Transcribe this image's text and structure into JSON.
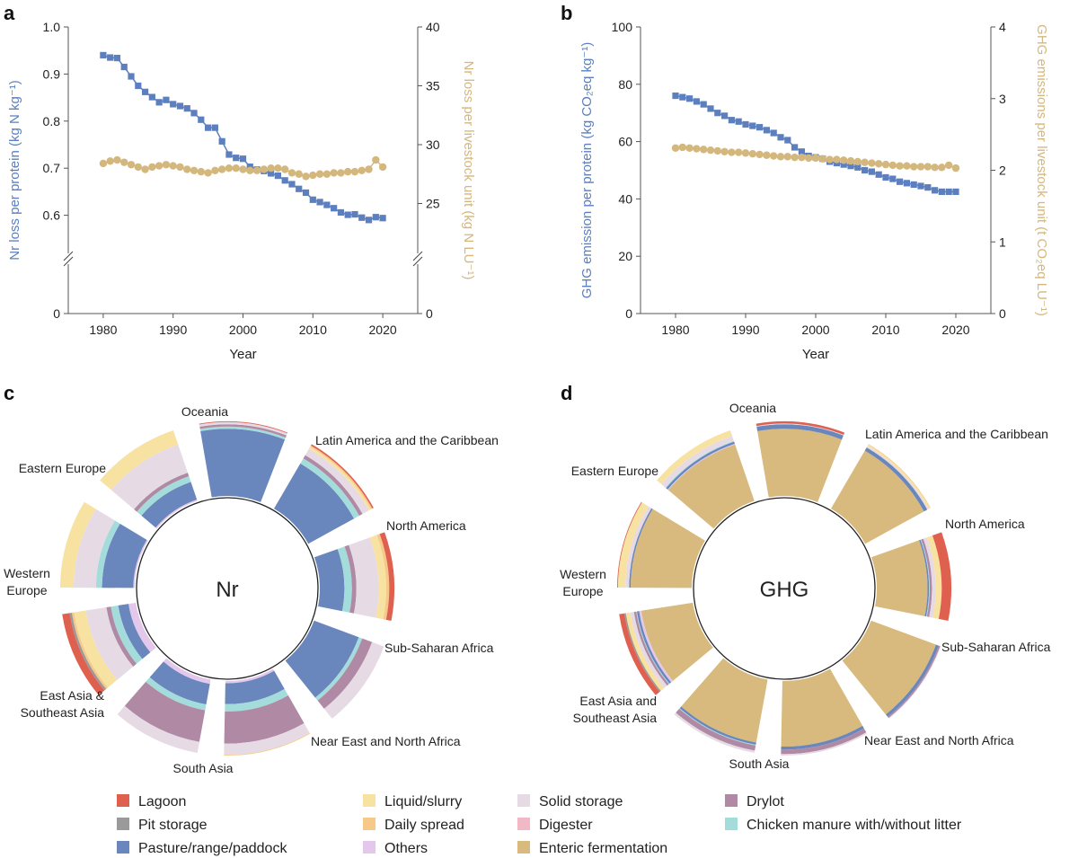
{
  "panels": {
    "a": "a",
    "b": "b",
    "c": "c",
    "d": "d"
  },
  "colors": {
    "blue": "#5b7fbf",
    "tan": "#d4b77d",
    "lagoon": "#e06050",
    "pit_storage": "#9a9a9a",
    "pasture": "#6a87bd",
    "liquid_slurry": "#f7e2a2",
    "daily_spread": "#f6c98a",
    "others": "#e3c8ec",
    "solid_storage": "#e6dbe5",
    "digester": "#f2b8c6",
    "enteric": "#d8b97e",
    "drylot": "#b08aa4",
    "chicken": "#a4dcdc"
  },
  "chart_data": [
    {
      "id": "a",
      "type": "line",
      "xlabel": "Year",
      "ylabel_left": "Nr loss per protein (kg N kg⁻¹)",
      "ylabel_right": "Nr loss per livestock unit (kg N LU⁻¹)",
      "xlim": [
        1975,
        2025
      ],
      "xticks": [
        1980,
        1990,
        2000,
        2010,
        2020
      ],
      "ylim_left": [
        0.5,
        1.0
      ],
      "yticks_left": [
        "0",
        "0.6",
        "0.7",
        "0.8",
        "0.9",
        "1.0"
      ],
      "ylim_right": [
        20,
        40
      ],
      "yticks_right": [
        "0",
        "25",
        "30",
        "35",
        "40"
      ],
      "axis_break": true,
      "x": [
        1980,
        1981,
        1982,
        1983,
        1984,
        1985,
        1986,
        1987,
        1988,
        1989,
        1990,
        1991,
        1992,
        1993,
        1994,
        1995,
        1996,
        1997,
        1998,
        1999,
        2000,
        2001,
        2002,
        2003,
        2004,
        2005,
        2006,
        2007,
        2008,
        2009,
        2010,
        2011,
        2012,
        2013,
        2014,
        2015,
        2016,
        2017,
        2018,
        2019,
        2020
      ],
      "series": [
        {
          "axis": "left",
          "marker": "square",
          "values": [
            0.94,
            0.935,
            0.934,
            0.915,
            0.895,
            0.875,
            0.862,
            0.851,
            0.84,
            0.845,
            0.836,
            0.832,
            0.827,
            0.817,
            0.803,
            0.786,
            0.786,
            0.757,
            0.729,
            0.722,
            0.72,
            0.703,
            0.697,
            0.694,
            0.689,
            0.684,
            0.674,
            0.666,
            0.656,
            0.648,
            0.633,
            0.628,
            0.622,
            0.615,
            0.606,
            0.601,
            0.602,
            0.595,
            0.59,
            0.596,
            0.594
          ]
        },
        {
          "axis": "right",
          "marker": "circle",
          "values": [
            28.4,
            28.6,
            28.7,
            28.5,
            28.3,
            28.1,
            27.9,
            28.1,
            28.2,
            28.3,
            28.2,
            28.1,
            27.9,
            27.8,
            27.7,
            27.6,
            27.8,
            27.9,
            28.0,
            28.0,
            27.9,
            27.8,
            27.8,
            27.9,
            28.0,
            28.0,
            27.9,
            27.6,
            27.5,
            27.3,
            27.4,
            27.5,
            27.5,
            27.6,
            27.6,
            27.7,
            27.7,
            27.8,
            27.9,
            28.7,
            28.1
          ]
        }
      ]
    },
    {
      "id": "b",
      "type": "line",
      "xlabel": "Year",
      "ylabel_left": "GHG emission per protein (kg CO₂eq kg⁻¹)",
      "ylabel_right": "GHG emissions per livestock unit (t CO₂eq LU⁻¹)",
      "xlim": [
        1975,
        2025
      ],
      "xticks": [
        1980,
        1990,
        2000,
        2010,
        2020
      ],
      "ylim_left": [
        0,
        100
      ],
      "yticks_left": [
        "0",
        "20",
        "40",
        "60",
        "80",
        "100"
      ],
      "ylim_right": [
        0,
        4
      ],
      "yticks_right": [
        "0",
        "1",
        "2",
        "3",
        "4"
      ],
      "x": [
        1980,
        1981,
        1982,
        1983,
        1984,
        1985,
        1986,
        1987,
        1988,
        1989,
        1990,
        1991,
        1992,
        1993,
        1994,
        1995,
        1996,
        1997,
        1998,
        1999,
        2000,
        2001,
        2002,
        2003,
        2004,
        2005,
        2006,
        2007,
        2008,
        2009,
        2010,
        2011,
        2012,
        2013,
        2014,
        2015,
        2016,
        2017,
        2018,
        2019,
        2020
      ],
      "series": [
        {
          "axis": "left",
          "marker": "square",
          "values": [
            76,
            75.5,
            75,
            74,
            73,
            71.5,
            70,
            69,
            67.5,
            67,
            66,
            65.5,
            65,
            64,
            63,
            61.5,
            60.5,
            58,
            56.5,
            55,
            54.5,
            54,
            53,
            52.5,
            52,
            51.5,
            51,
            50,
            49.5,
            48.5,
            47.5,
            47,
            46,
            45.5,
            45,
            44.5,
            44,
            43,
            42.5,
            42.5,
            42.5
          ]
        },
        {
          "axis": "right",
          "marker": "circle",
          "values": [
            2.31,
            2.32,
            2.31,
            2.3,
            2.29,
            2.28,
            2.27,
            2.26,
            2.25,
            2.25,
            2.24,
            2.23,
            2.22,
            2.21,
            2.2,
            2.19,
            2.19,
            2.18,
            2.18,
            2.17,
            2.17,
            2.16,
            2.15,
            2.15,
            2.14,
            2.13,
            2.12,
            2.11,
            2.1,
            2.09,
            2.08,
            2.07,
            2.06,
            2.06,
            2.05,
            2.05,
            2.05,
            2.04,
            2.04,
            2.07,
            2.03
          ]
        }
      ]
    },
    {
      "id": "c",
      "type": "radial-stacked-bar",
      "center_label": "Nr",
      "regions": [
        "Oceania",
        "Latin America and the Caribbean",
        "North America",
        "Sub-Saharan Africa",
        "Near East and North Africa",
        "South Asia",
        "East Asia & Southeast Asia",
        "Western Europe",
        "Eastern Europe"
      ],
      "region_label_lines": [
        [
          "Oceania"
        ],
        [
          "Latin America and the Caribbean"
        ],
        [
          "North America"
        ],
        [
          "Sub-Saharan Africa"
        ],
        [
          "Near East and North Africa"
        ],
        [
          "South Asia"
        ],
        [
          "East Asia &",
          "Southeast Asia"
        ],
        [
          "Western",
          "Europe"
        ],
        [
          "Eastern Europe"
        ]
      ],
      "stack_order": [
        "others",
        "pasture",
        "chicken",
        "drylot",
        "solid_storage",
        "liquid_slurry",
        "daily_spread",
        "digester",
        "pit_storage",
        "lagoon"
      ],
      "shares": [
        {
          "pasture": 0.9,
          "chicken": 0.03,
          "drylot": 0.03,
          "solid_storage": 0.03,
          "lagoon": 0.01
        },
        {
          "pasture": 0.7,
          "chicken": 0.08,
          "drylot": 0.05,
          "solid_storage": 0.1,
          "liquid_slurry": 0.03,
          "daily_spread": 0.02,
          "lagoon": 0.02
        },
        {
          "pasture": 0.33,
          "chicken": 0.1,
          "drylot": 0.06,
          "solid_storage": 0.3,
          "liquid_slurry": 0.1,
          "daily_spread": 0.04,
          "lagoon": 0.07
        },
        {
          "pasture": 0.64,
          "chicken": 0.05,
          "drylot": 0.14,
          "solid_storage": 0.17
        },
        {
          "others": 0.03,
          "pasture": 0.28,
          "chicken": 0.1,
          "drylot": 0.43,
          "solid_storage": 0.15,
          "daily_spread": 0.01
        },
        {
          "others": 0.06,
          "pasture": 0.28,
          "chicken": 0.08,
          "drylot": 0.43,
          "solid_storage": 0.15
        },
        {
          "others": 0.1,
          "pasture": 0.14,
          "chicken": 0.1,
          "drylot": 0.06,
          "solid_storage": 0.28,
          "liquid_slurry": 0.16,
          "daily_spread": 0.03,
          "pit_storage": 0.03,
          "lagoon": 0.1
        },
        {
          "others": 0.02,
          "pasture": 0.42,
          "chicken": 0.08,
          "solid_storage": 0.3,
          "liquid_slurry": 0.18
        },
        {
          "others": 0.02,
          "pasture": 0.25,
          "chicken": 0.08,
          "drylot": 0.05,
          "solid_storage": 0.4,
          "liquid_slurry": 0.2
        }
      ]
    },
    {
      "id": "d",
      "type": "radial-stacked-bar",
      "center_label": "GHG",
      "regions": [
        "Oceania",
        "Latin America and the Caribbean",
        "North America",
        "Sub-Saharan Africa",
        "Near East and North Africa",
        "South Asia",
        "East Asia and Southeast Asia",
        "Western Europe",
        "Eastern Europe"
      ],
      "region_label_lines": [
        [
          "Oceania"
        ],
        [
          "Latin America and the Caribbean"
        ],
        [
          "North America"
        ],
        [
          "Sub-Saharan Africa"
        ],
        [
          "Near East and North Africa"
        ],
        [
          "South Asia"
        ],
        [
          "East Asia and",
          "Southeast Asia"
        ],
        [
          "Western",
          "Europe"
        ],
        [
          "Eastern Europe"
        ]
      ],
      "stack_order": [
        "enteric",
        "others",
        "pasture",
        "chicken",
        "drylot",
        "solid_storage",
        "liquid_slurry",
        "daily_spread",
        "digester",
        "pit_storage",
        "lagoon"
      ],
      "shares": [
        {
          "enteric": 0.9,
          "pasture": 0.06,
          "solid_storage": 0.01,
          "lagoon": 0.03
        },
        {
          "enteric": 0.9,
          "pasture": 0.05,
          "solid_storage": 0.02,
          "liquid_slurry": 0.02,
          "daily_spread": 0.01
        },
        {
          "enteric": 0.68,
          "pasture": 0.02,
          "chicken": 0.01,
          "drylot": 0.03,
          "solid_storage": 0.05,
          "liquid_slurry": 0.08,
          "lagoon": 0.13
        },
        {
          "enteric": 0.93,
          "pasture": 0.04,
          "drylot": 0.02,
          "solid_storage": 0.01
        },
        {
          "enteric": 0.88,
          "pasture": 0.04,
          "drylot": 0.06,
          "solid_storage": 0.02
        },
        {
          "enteric": 0.86,
          "pasture": 0.03,
          "chicken": 0.01,
          "drylot": 0.07,
          "solid_storage": 0.03
        },
        {
          "enteric": 0.7,
          "others": 0.03,
          "pasture": 0.03,
          "chicken": 0.01,
          "drylot": 0.03,
          "solid_storage": 0.05,
          "liquid_slurry": 0.06,
          "pit_storage": 0.02,
          "lagoon": 0.07
        },
        {
          "enteric": 0.82,
          "pasture": 0.02,
          "solid_storage": 0.05,
          "liquid_slurry": 0.1,
          "lagoon": 0.01
        },
        {
          "enteric": 0.8,
          "others": 0.01,
          "pasture": 0.03,
          "chicken": 0.01,
          "solid_storage": 0.07,
          "liquid_slurry": 0.08
        }
      ]
    }
  ],
  "legend": [
    {
      "key": "lagoon",
      "label": "Lagoon"
    },
    {
      "key": "pit_storage",
      "label": "Pit storage"
    },
    {
      "key": "pasture",
      "label": "Pasture/range/paddock"
    },
    {
      "key": "liquid_slurry",
      "label": "Liquid/slurry"
    },
    {
      "key": "daily_spread",
      "label": "Daily spread"
    },
    {
      "key": "others",
      "label": "Others"
    },
    {
      "key": "solid_storage",
      "label": "Solid storage"
    },
    {
      "key": "digester",
      "label": "Digester"
    },
    {
      "key": "enteric",
      "label": "Enteric fermentation"
    },
    {
      "key": "drylot",
      "label": "Drylot"
    },
    {
      "key": "chicken",
      "label": "Chicken manure with/without litter"
    }
  ]
}
